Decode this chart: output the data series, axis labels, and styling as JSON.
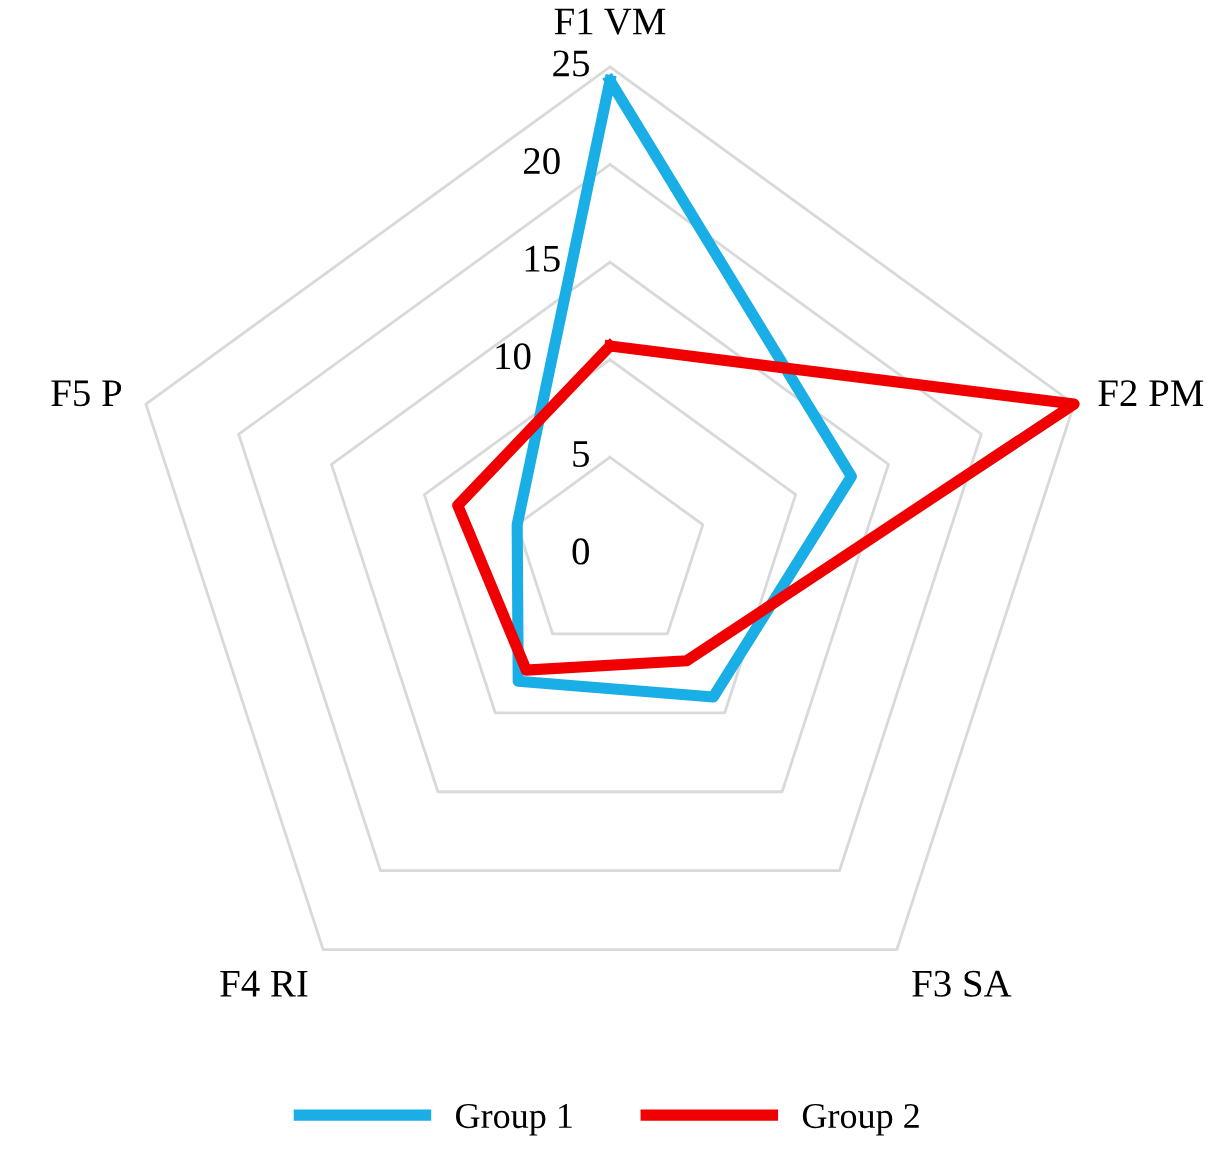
{
  "chart_data": {
    "type": "radar",
    "categories": [
      "F1 VM",
      "F2 PM",
      "F3 SA",
      "F4 RI",
      "F5 P"
    ],
    "series": [
      {
        "name": "Group 1",
        "color": "#1aaee6",
        "values": [
          24.3,
          13,
          9,
          8,
          5
        ]
      },
      {
        "name": "Group 2",
        "color": "#f00000",
        "values": [
          10.7,
          25,
          6.7,
          7.3,
          8.2
        ]
      }
    ],
    "ylim": [
      0,
      25
    ],
    "yticks": [
      0,
      5,
      10,
      15,
      20,
      25
    ],
    "grid": true,
    "legend": "bottom",
    "marker": "none",
    "line_style": "solid"
  }
}
